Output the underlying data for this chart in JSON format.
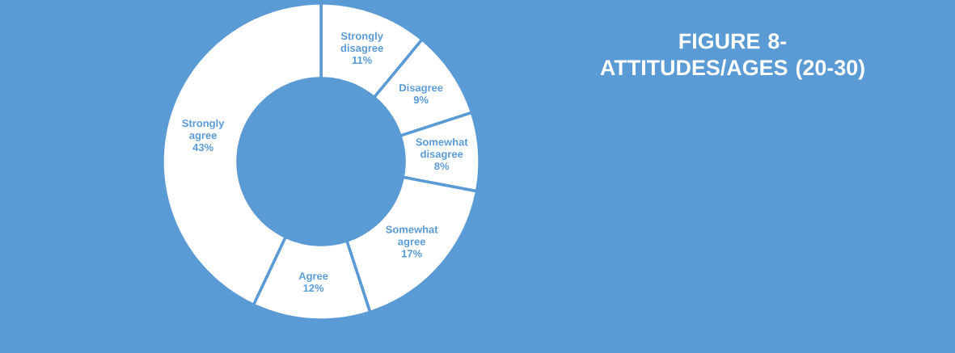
{
  "chart_data": {
    "type": "donut",
    "title": "FIGURE 8- ATTITUDES/AGES (20-30)",
    "categories": [
      "Strongly disagree",
      "Disagree",
      "Somewhat disagree",
      "Somewhat agree",
      "Agree",
      "Strongly agree"
    ],
    "values": [
      11,
      9,
      8,
      17,
      12,
      43
    ],
    "value_labels": [
      "11%",
      "9%",
      "8%",
      "17%",
      "12%",
      "43%"
    ],
    "colors": [
      "#ffffff",
      "#ffffff",
      "#ffffff",
      "#ffffff",
      "#ffffff",
      "#ffffff"
    ]
  }
}
